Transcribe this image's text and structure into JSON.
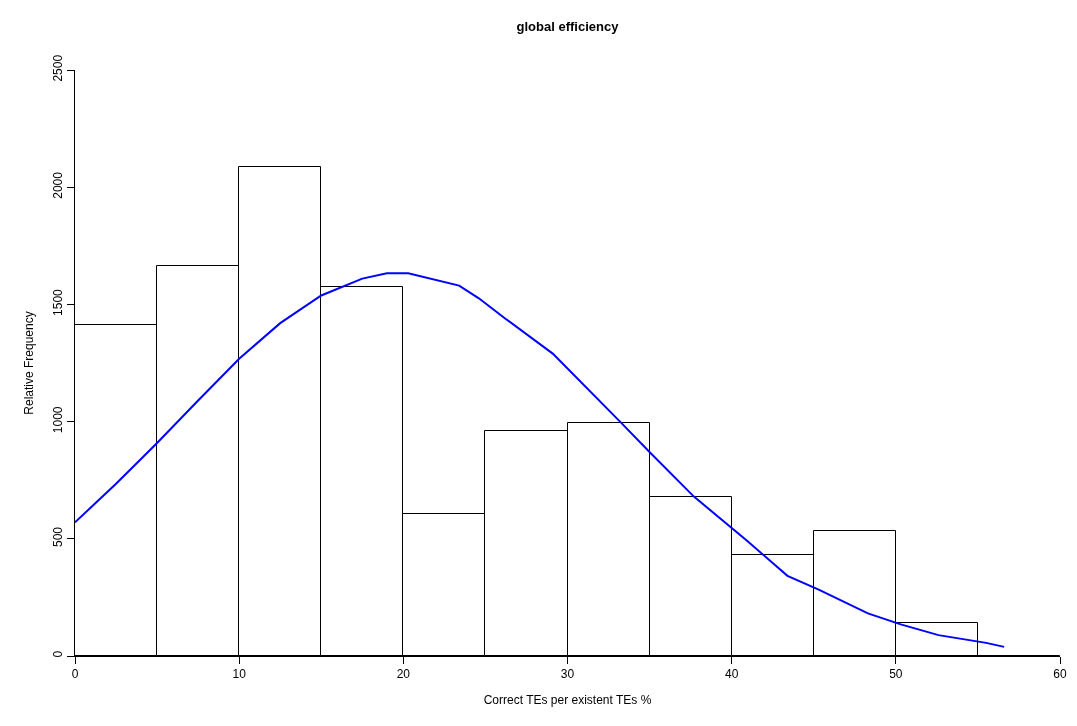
{
  "chart_data": {
    "type": "histogram",
    "title": "global efficiency",
    "xlabel": "Correct TEs per existent TEs %",
    "ylabel": "Relative Frequency",
    "bins": [
      0,
      5,
      10,
      15,
      20,
      25,
      30,
      35,
      40,
      45,
      50,
      55,
      60
    ],
    "values": [
      1414,
      1664,
      2086,
      1576,
      605,
      962,
      996,
      678,
      433,
      533,
      140,
      0
    ],
    "color": "#ffffff",
    "series": [
      {
        "type": "line",
        "color": "#0000ff",
        "x": [
          0,
          2.5,
          5,
          7.5,
          10,
          12.5,
          15,
          17.5,
          19,
          20.3,
          23.4,
          24.6,
          26.2,
          29.1,
          33.2,
          35.1,
          37.7,
          40.9,
          43.4,
          45.3,
          48.3,
          50.3,
          52.6,
          55.5,
          56.6
        ],
        "values": [
          570,
          735,
          909,
          1090,
          1268,
          1420,
          1538,
          1610,
          1633,
          1633,
          1580,
          1526,
          1440,
          1290,
          1000,
          863,
          680,
          494,
          342,
          283,
          182,
          135,
          89,
          56,
          39
        ]
      }
    ],
    "xlim": [
      0,
      60
    ],
    "xticks": [
      0,
      10,
      20,
      30,
      40,
      50,
      60
    ],
    "ylim": [
      0,
      2500
    ],
    "yticks": [
      0,
      500,
      1000,
      1500,
      2000,
      2500
    ],
    "marker": "none"
  }
}
